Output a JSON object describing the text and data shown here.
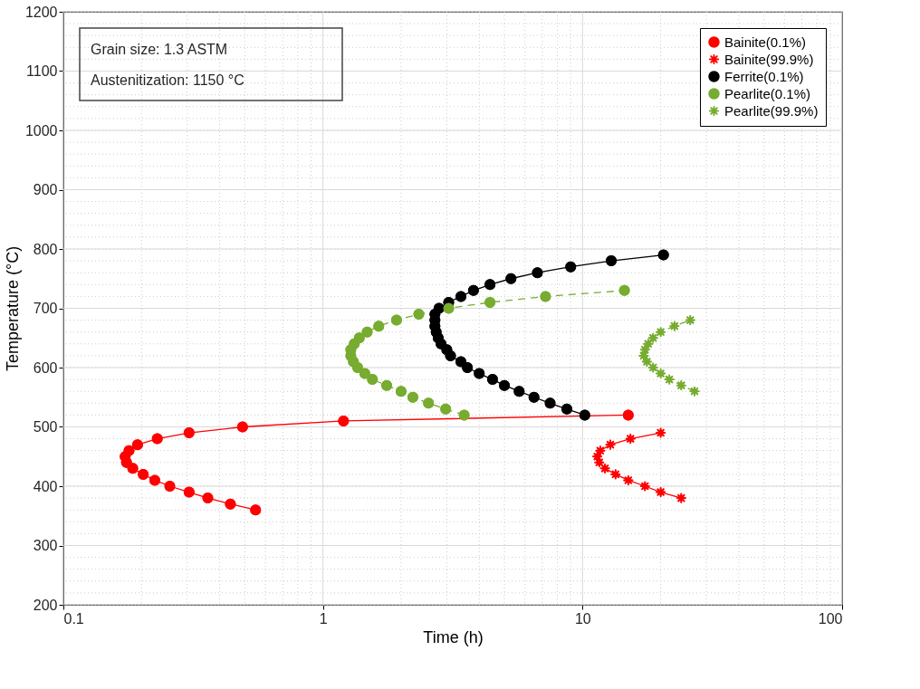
{
  "chart_data": {
    "type": "line",
    "xlabel": "Time (h)",
    "ylabel": "Temperature (°C)",
    "log": "x",
    "xlim": [
      0.1,
      100
    ],
    "xticks": [
      0.1,
      1,
      10,
      100
    ],
    "ylim": [
      200,
      1200
    ],
    "yticks": [
      200,
      300,
      400,
      500,
      600,
      700,
      800,
      900,
      1000,
      1100,
      1200
    ],
    "grid": true,
    "legend": "top right",
    "annotations": [
      "Grain size: 1.3 ASTM",
      "Austenitization: 1150 °C"
    ],
    "series": [
      {
        "name": "Bainite(0.1%)",
        "color": "#ff0000",
        "marker": "circle",
        "line_style": "solid",
        "x": [
          0.55,
          0.44,
          0.36,
          0.305,
          0.257,
          0.225,
          0.203,
          0.185,
          0.175,
          0.173,
          0.179,
          0.193,
          0.23,
          0.305,
          0.49,
          1.2,
          15
        ],
        "values": [
          360,
          370,
          380,
          390,
          400,
          410,
          420,
          430,
          440,
          450,
          460,
          470,
          480,
          490,
          500,
          510,
          520
        ]
      },
      {
        "name": "Bainite(99.9%)",
        "color": "#ff0000",
        "marker": "star",
        "line_style": "solid",
        "x": [
          24,
          20,
          17.4,
          15,
          13.4,
          12.2,
          11.6,
          11.4,
          11.7,
          12.8,
          15.3,
          20
        ],
        "values": [
          380,
          390,
          400,
          410,
          420,
          430,
          440,
          450,
          460,
          470,
          480,
          490
        ]
      },
      {
        "name": "Ferrite(0.1%)",
        "color": "#000000",
        "marker": "circle",
        "line_style": "solid",
        "x": [
          10.2,
          8.7,
          7.5,
          6.5,
          5.7,
          5.0,
          4.5,
          4.0,
          3.6,
          3.4,
          3.1,
          3.0,
          2.85,
          2.78,
          2.73,
          2.7,
          2.7,
          2.7,
          2.8,
          3.05,
          3.4,
          3.8,
          4.4,
          5.3,
          6.7,
          9.0,
          12.9,
          20.5
        ],
        "values": [
          520,
          530,
          540,
          550,
          560,
          570,
          580,
          590,
          600,
          610,
          620,
          630,
          640,
          650,
          660,
          670,
          680,
          690,
          700,
          710,
          720,
          730,
          740,
          750,
          760,
          770,
          780,
          790
        ]
      },
      {
        "name": "Pearlite(0.1%)",
        "color": "#77ac30",
        "marker": "circle",
        "line_style": "dashed",
        "x": [
          3.5,
          2.97,
          2.55,
          2.22,
          2.0,
          1.76,
          1.55,
          1.45,
          1.36,
          1.31,
          1.28,
          1.28,
          1.32,
          1.38,
          1.48,
          1.64,
          1.92,
          2.34,
          3.05,
          4.4,
          7.2,
          14.5
        ],
        "values": [
          520,
          530,
          540,
          550,
          560,
          570,
          580,
          590,
          600,
          610,
          620,
          630,
          640,
          650,
          660,
          670,
          680,
          690,
          700,
          710,
          720,
          730
        ]
      },
      {
        "name": "Pearlite(99.9%)",
        "color": "#77ac30",
        "marker": "star",
        "line_style": "dashed",
        "x": [
          27,
          24,
          21.6,
          20,
          18.7,
          17.7,
          17.2,
          17.4,
          17.9,
          18.7,
          20,
          22.6,
          26
        ],
        "values": [
          560,
          570,
          580,
          590,
          600,
          610,
          620,
          630,
          640,
          650,
          660,
          670,
          680
        ]
      }
    ]
  }
}
